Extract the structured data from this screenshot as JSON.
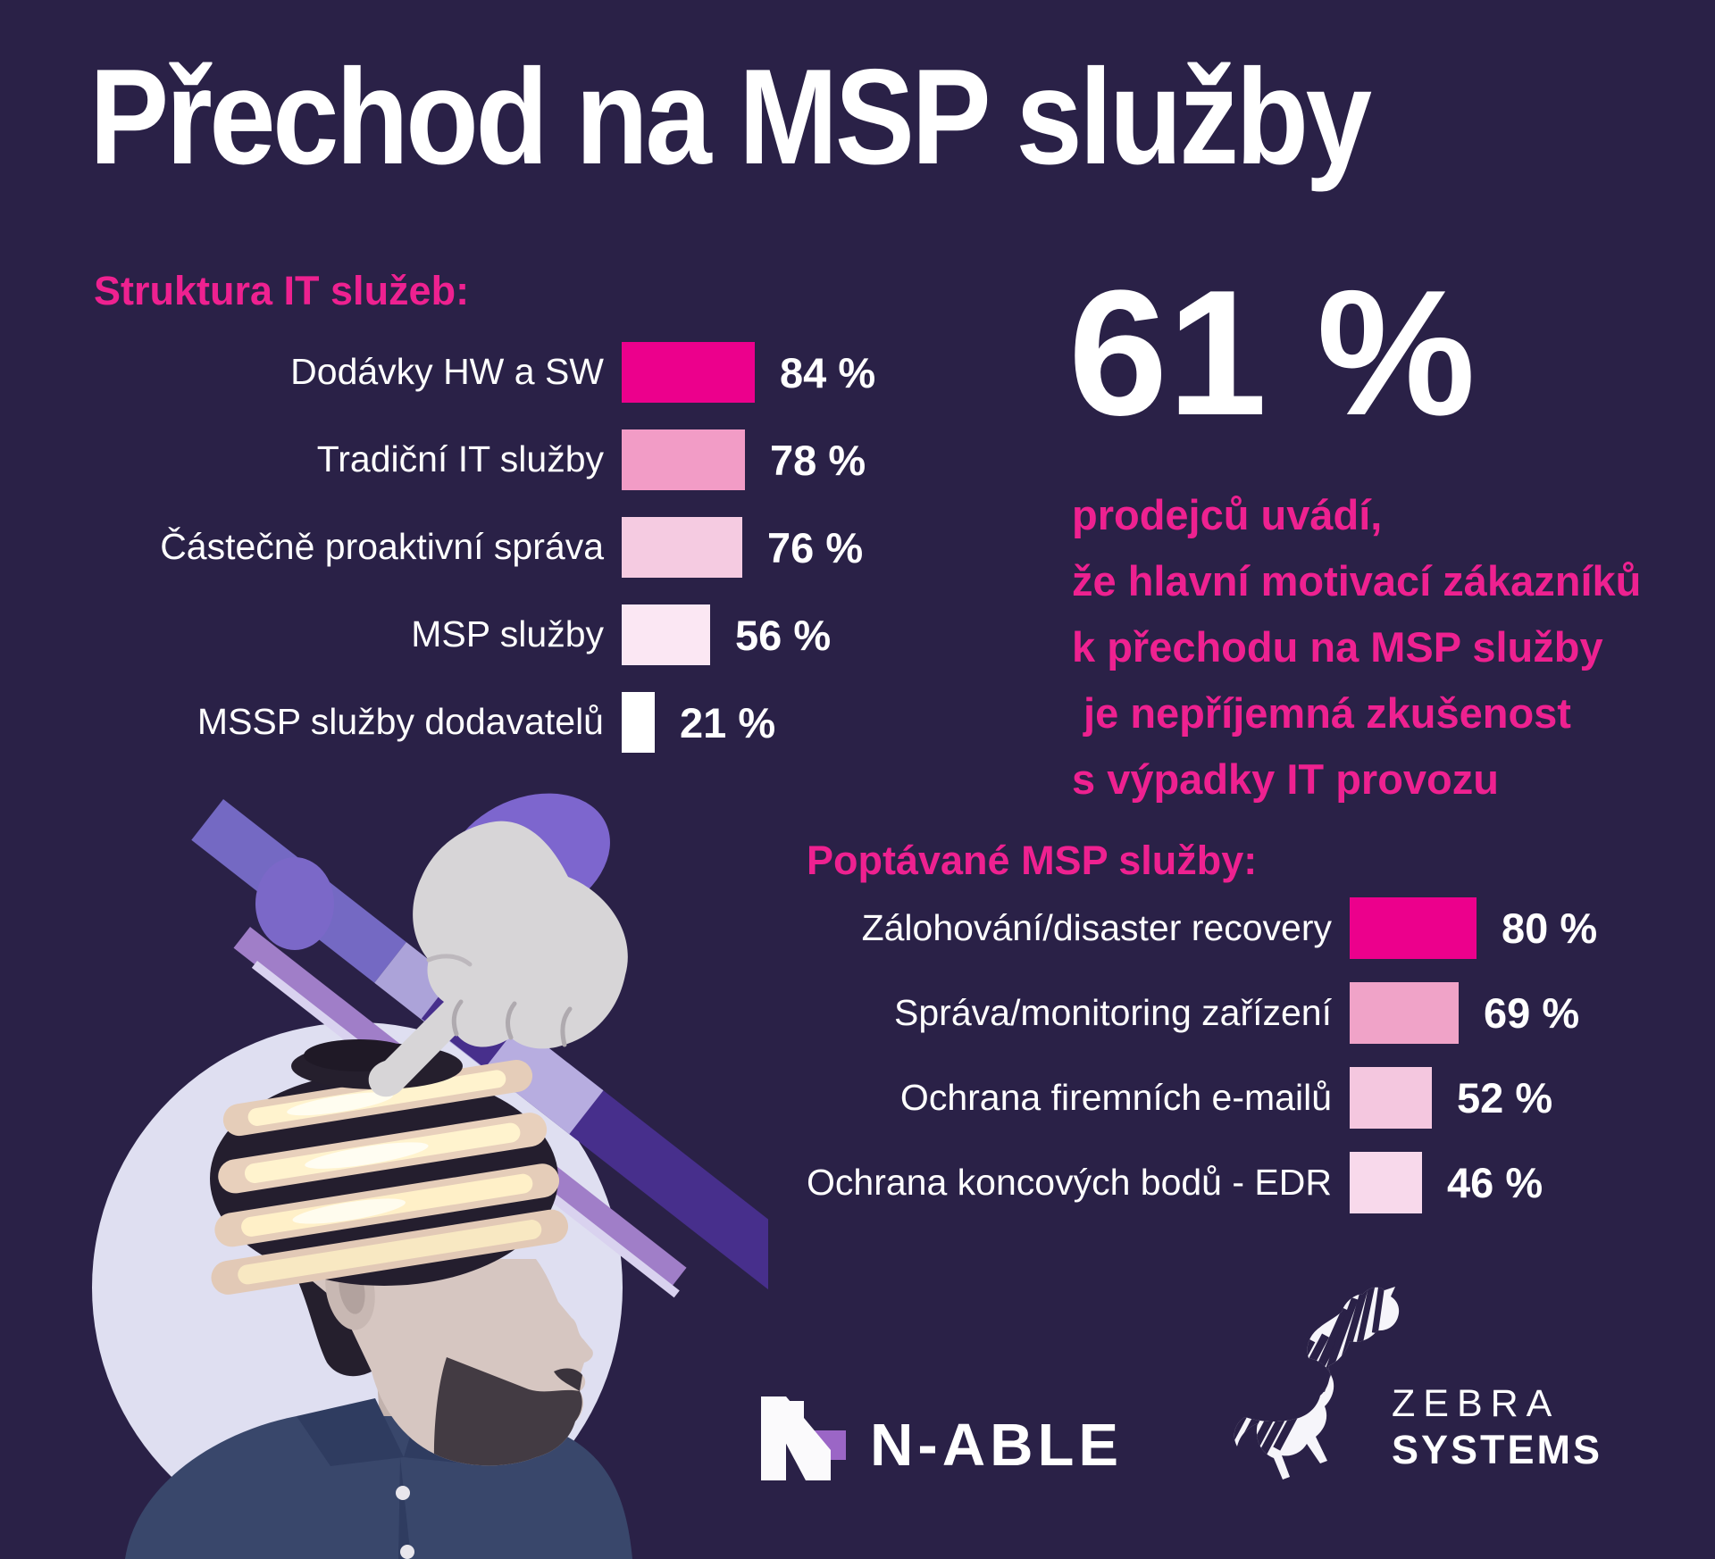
{
  "title": "Přechod na MSP služby",
  "colors": {
    "background": "#2A2147",
    "accent": "#EE2190",
    "text": "#FFFFFF",
    "stripe_purple": "#7469C3",
    "stripe_lavender": "#ACA3D9",
    "stripe_violet": "#A07EC8",
    "stripe_dark_purple": "#472F8C",
    "circle_fill": "#DFDFF1",
    "nable_mark_purple": "#9B66C6"
  },
  "chart_data": [
    {
      "type": "bar",
      "orientation": "horizontal",
      "title": "Struktura IT služeb:",
      "unit": "%",
      "categories": [
        "Dodávky HW a SW",
        "Tradiční IT služby",
        "Částečně proaktivní správa",
        "MSP služby",
        "MSSP služby dodavatelů"
      ],
      "values": [
        84,
        78,
        76,
        56,
        21
      ],
      "value_labels": [
        "84 %",
        "78 %",
        "76 %",
        "56 %",
        "21 %"
      ],
      "bar_colors": [
        "#EC008C",
        "#F29CC6",
        "#F5CBE1",
        "#FBE7F3",
        "#FFFFFF"
      ],
      "xlim": [
        0,
        100
      ],
      "grid": false,
      "legend": "none"
    },
    {
      "type": "bar",
      "orientation": "horizontal",
      "title": "Poptávané MSP služby:",
      "unit": "%",
      "categories": [
        "Zálohování/disaster recovery",
        "Správa/monitoring zařízení",
        "Ochrana firemních e-mailů",
        "Ochrana koncových bodů - EDR"
      ],
      "values": [
        80,
        69,
        52,
        46
      ],
      "value_labels": [
        "80 %",
        "69 %",
        "52 %",
        "46 %"
      ],
      "bar_colors": [
        "#EC008C",
        "#F0A3C8",
        "#F4C7DF",
        "#F8D9EB"
      ],
      "xlim": [
        0,
        100
      ],
      "grid": false,
      "legend": "none"
    }
  ],
  "stat": {
    "value": "61 %",
    "lines": [
      "prodejců uvádí,",
      "že hlavní motivací zákazníků",
      "k přechodu na MSP služby",
      " je nepříjemná zkušenost",
      "s výpadky IT provozu"
    ]
  },
  "logos": {
    "nable": {
      "wordmark": "N-ABLE"
    },
    "zebra": {
      "line1": "ZEBRA",
      "line2": "SYSTEMS"
    }
  }
}
